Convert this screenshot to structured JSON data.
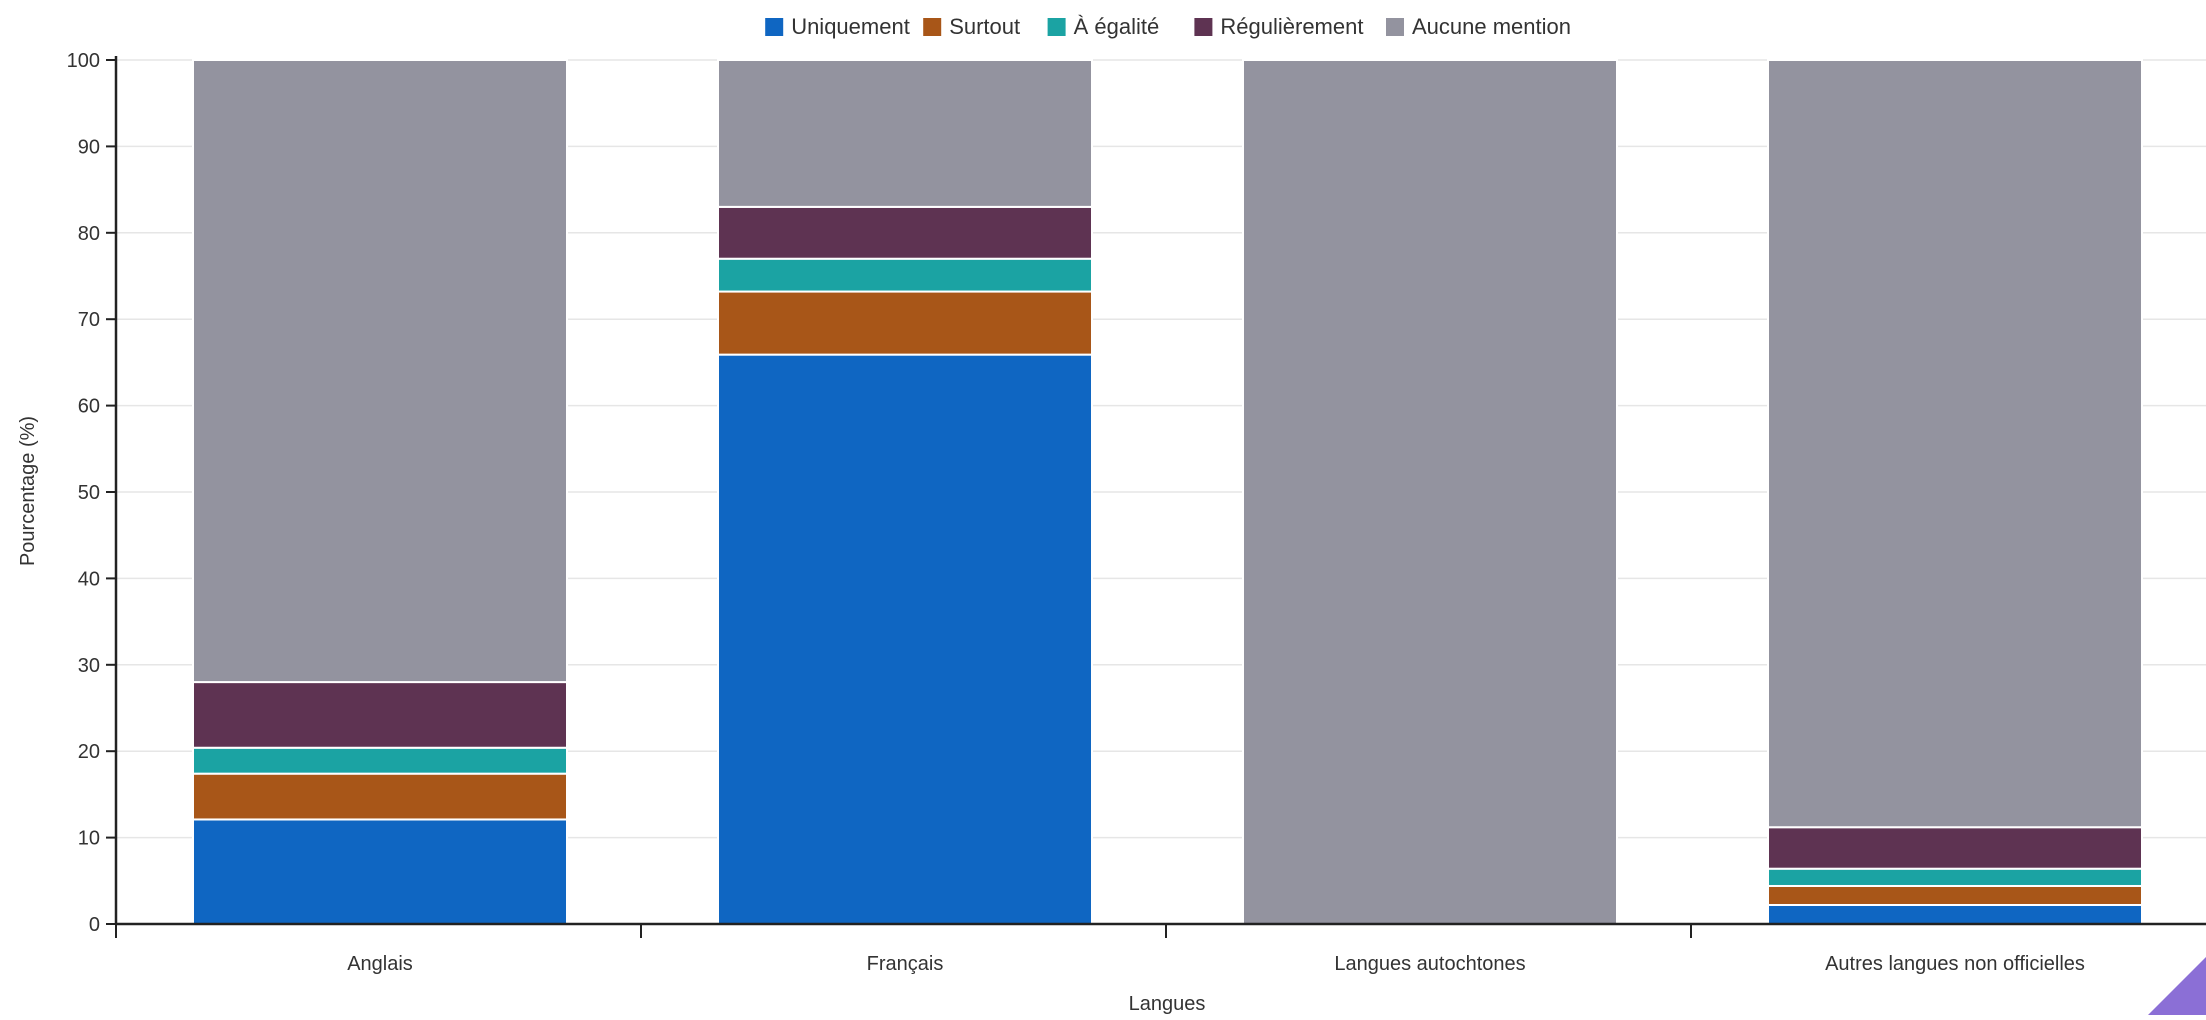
{
  "chart_data": {
    "type": "bar",
    "stacked": true,
    "title": "",
    "xlabel": "Langues",
    "ylabel": "Pourcentage (%)",
    "ylim": [
      0,
      100
    ],
    "yticks": [
      0,
      10,
      20,
      30,
      40,
      50,
      60,
      70,
      80,
      90,
      100
    ],
    "grid": true,
    "legend_position": "top-center",
    "categories": [
      "Anglais",
      "Français",
      "Langues autochtones",
      "Autres langues non officielles"
    ],
    "series": [
      {
        "name": "Uniquement",
        "color": "#0f66c2",
        "values": [
          12.1,
          65.9,
          0,
          2.2
        ]
      },
      {
        "name": "Surtout",
        "color": "#a85618",
        "values": [
          5.3,
          7.3,
          0,
          2.2
        ]
      },
      {
        "name": "À égalité",
        "color": "#1ba3a3",
        "values": [
          3.0,
          3.8,
          0,
          2.0
        ]
      },
      {
        "name": "Régulièrement",
        "color": "#5e3352",
        "values": [
          7.6,
          6.0,
          0,
          4.8
        ]
      },
      {
        "name": "Aucune mention",
        "color": "#93939f",
        "values": [
          72.0,
          17.0,
          100,
          88.8
        ]
      }
    ]
  }
}
